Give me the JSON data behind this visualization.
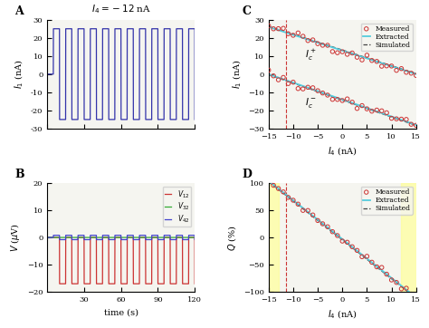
{
  "title_A": "$I_4 = -12$ nA",
  "fig_bg": "#e8e8e8",
  "panel_A": {
    "ylabel": "$I_1$ (nA)",
    "ylim": [
      -30,
      30
    ],
    "yticks": [
      -30,
      -20,
      -10,
      0,
      10,
      20,
      30
    ],
    "square_wave_high": 25,
    "square_wave_low": -25,
    "period": 10,
    "color": "#3333aa"
  },
  "panel_B": {
    "ylabel": "$V$ ($\\mu$V)",
    "xlabel": "time (s)",
    "ylim": [
      -20,
      20
    ],
    "yticks": [
      -20,
      -10,
      0,
      10,
      20
    ],
    "xticks": [
      30,
      60,
      90,
      120
    ],
    "colors": {
      "V12": "#cc3333",
      "V32": "#33aa33",
      "V42": "#4444cc"
    },
    "labels": {
      "V12": "$V_{12}$",
      "V32": "$V_{32}$",
      "V42": "$V_{42}$"
    },
    "V12_high": 0,
    "V12_low": -17,
    "V42_high": 0.8,
    "V42_low": -0.8
  },
  "panel_C": {
    "xlabel": "$I_4$ (nA)",
    "ylabel": "$I_1$ (nA)",
    "xlim": [
      -15,
      15
    ],
    "ylim": [
      -30,
      30
    ],
    "yticks": [
      -30,
      -20,
      -10,
      0,
      10,
      20,
      30
    ],
    "xticks": [
      -15,
      -10,
      -5,
      0,
      5,
      10,
      15
    ],
    "vline_x": -11.5,
    "Ic_plus_slope": -0.867,
    "Ic_plus_intercept": 13.0,
    "Ic_minus_slope": -0.933,
    "Ic_minus_intercept": -14.0,
    "scatter_color": "#cc3333",
    "extracted_color": "#55ccdd",
    "simulated_color": "#444444",
    "label_measured": "Measured",
    "label_extracted": "Extracted",
    "label_simulated": "Simulated",
    "annotation_plus": "$I_c^+$",
    "annotation_minus": "$I_c^-$"
  },
  "panel_D": {
    "xlabel": "$I_4$ (nA)",
    "ylabel": "$Q$ (%)",
    "xlim": [
      -15,
      15
    ],
    "ylim": [
      -100,
      100
    ],
    "yticks": [
      -100,
      -50,
      0,
      50,
      100
    ],
    "xticks": [
      -15,
      -10,
      -5,
      0,
      5,
      10,
      15
    ],
    "vline_x": -11.5,
    "yellow_region1": [
      -15,
      -13
    ],
    "yellow_region2": [
      12,
      15
    ],
    "Q_slope": -7.14,
    "Q_intercept": -3.0,
    "scatter_color": "#cc3333",
    "extracted_color": "#55ccdd",
    "simulated_color": "#444444",
    "label_measured": "Measured",
    "label_extracted": "Extracted",
    "label_simulated": "Simulated"
  }
}
